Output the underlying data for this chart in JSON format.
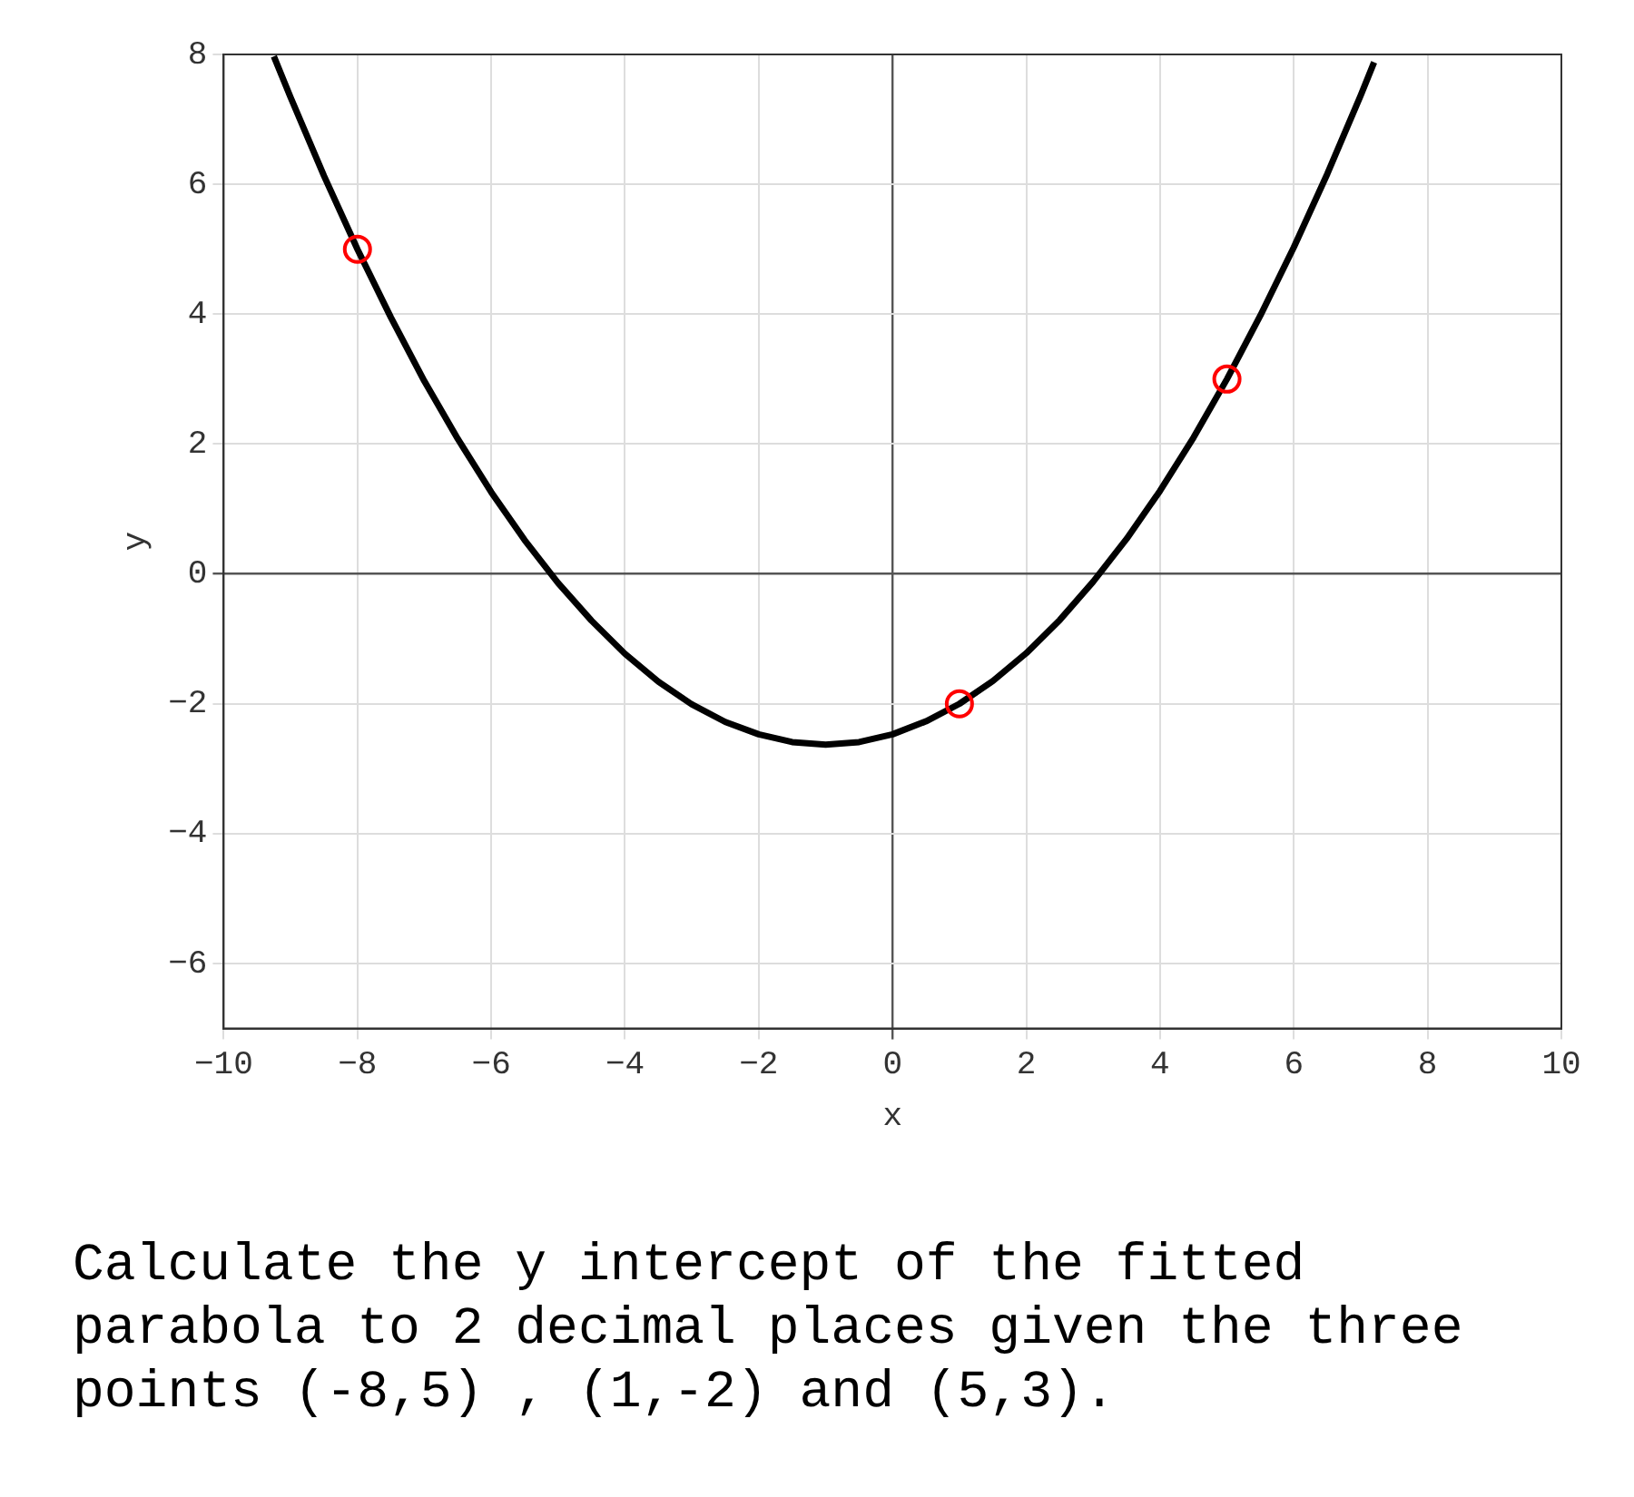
{
  "chart_data": {
    "type": "line",
    "xlabel": "x",
    "ylabel": "y",
    "xlim": [
      -10,
      10
    ],
    "xticks": [
      -10,
      -8,
      -6,
      -4,
      -2,
      0,
      2,
      4,
      6,
      8,
      10
    ],
    "ylim": [
      -7,
      8
    ],
    "yticks": [
      -6,
      -4,
      -2,
      0,
      2,
      4,
      6,
      8
    ],
    "grid": true,
    "legend": false,
    "series": [
      {
        "type": "line",
        "color": "#000000",
        "marker": "none",
        "x": [
          -9.25,
          -9,
          -8.5,
          -8,
          -7.5,
          -7,
          -6.5,
          -6,
          -5.5,
          -5,
          -4.5,
          -4,
          -3.5,
          -3,
          -2.5,
          -2,
          -1.5,
          -1,
          -0.5,
          0,
          0.5,
          1,
          1.5,
          2,
          2.5,
          3,
          3.5,
          4,
          4.5,
          5,
          5.5,
          6,
          6.5,
          7,
          7.2
        ],
        "values": [
          7.97,
          7.34,
          6.13,
          5.0,
          3.95,
          2.97,
          2.08,
          1.26,
          0.52,
          -0.14,
          -0.72,
          -1.23,
          -1.66,
          -2.01,
          -2.28,
          -2.47,
          -2.59,
          -2.63,
          -2.59,
          -2.47,
          -2.27,
          -2.0,
          -1.65,
          -1.22,
          -0.71,
          -0.12,
          0.54,
          1.28,
          2.1,
          3.0,
          3.98,
          5.03,
          6.16,
          7.37,
          7.88
        ]
      },
      {
        "type": "scatter",
        "color": "#ff0000",
        "marker": "circle",
        "x": [
          -8,
          1,
          5
        ],
        "values": [
          5,
          -2,
          3
        ]
      }
    ],
    "annotations": [
      "Calculate the y intercept of the fitted parabola to 2 decimal places given the three points (-8,5) , (1,-2) and (5,3)."
    ]
  }
}
